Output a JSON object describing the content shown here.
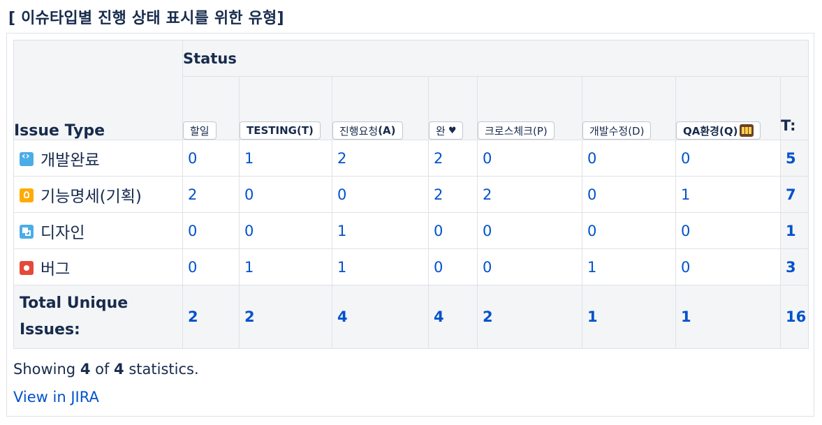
{
  "page_title": "[ 이슈타입별 진행 상태 표시를 위한 유형]",
  "table": {
    "issue_type_header": "Issue Type",
    "status_header": "Status",
    "total_header": "T:",
    "columns": [
      {
        "label": "할일"
      },
      {
        "label": "TESTING(T)"
      },
      {
        "label": "진행요청",
        "suffix": " (A)"
      },
      {
        "label": "완",
        "icon": "heart-icon",
        "glyph": "♥"
      },
      {
        "label": "크로스체크(P)"
      },
      {
        "label": "개발수정(D)"
      },
      {
        "label": "QA환경(Q)",
        "icon": "slot-machine-icon"
      }
    ],
    "rows": [
      {
        "type": "개발완료",
        "icon": "code-icon",
        "values": [
          "0",
          "1",
          "2",
          "2",
          "0",
          "0",
          "0"
        ],
        "total": "5"
      },
      {
        "type": "기능명세(기획)",
        "icon": "lightbulb-icon",
        "values": [
          "2",
          "0",
          "0",
          "2",
          "2",
          "0",
          "1"
        ],
        "total": "7"
      },
      {
        "type": "디자인",
        "icon": "design-icon",
        "values": [
          "0",
          "0",
          "1",
          "0",
          "0",
          "0",
          "0"
        ],
        "total": "1"
      },
      {
        "type": "버그",
        "icon": "bug-icon",
        "values": [
          "0",
          "1",
          "1",
          "0",
          "0",
          "1",
          "0"
        ],
        "total": "3"
      }
    ],
    "footer": {
      "label": "Total Unique Issues:",
      "values": [
        "2",
        "2",
        "4",
        "4",
        "2",
        "1",
        "1"
      ],
      "total": "16"
    }
  },
  "summary": {
    "prefix": "Showing ",
    "shown": "4",
    "middle": " of ",
    "count": "4",
    "suffix": " statistics."
  },
  "view_link": "View in JIRA",
  "colors": {
    "link": "#0052cc",
    "text": "#172b4d",
    "header_bg": "#f4f5f7",
    "border": "#dfe1e6"
  }
}
